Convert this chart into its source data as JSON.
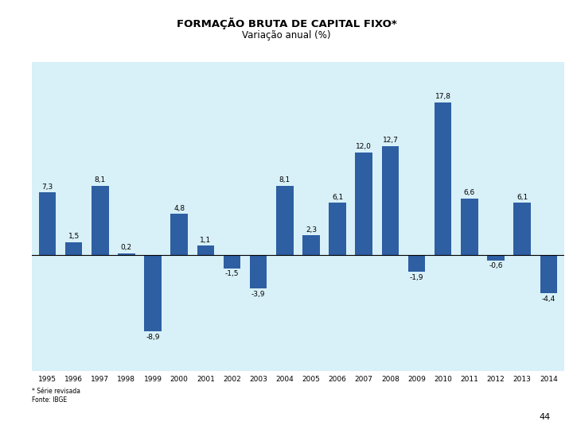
{
  "title": "FORMAÇÃO BRUTA DE CAPITAL FIXO*",
  "subtitle": "Variação anual (%)",
  "years": [
    1995,
    1996,
    1997,
    1998,
    1999,
    2000,
    2001,
    2002,
    2003,
    2004,
    2005,
    2006,
    2007,
    2008,
    2009,
    2010,
    2011,
    2012,
    2013,
    2014
  ],
  "values": [
    7.3,
    1.5,
    8.1,
    0.2,
    -8.9,
    4.8,
    1.1,
    -1.5,
    -3.9,
    8.1,
    2.3,
    6.1,
    12.0,
    12.7,
    -1.9,
    17.8,
    6.6,
    -0.6,
    6.1,
    -4.4
  ],
  "bar_color": "#2E5FA3",
  "bg_color": "#D8F0F8",
  "outer_bg": "#FFFFFF",
  "footnote1": "* Série revisada",
  "footnote2": "Fonte: IBGE",
  "page_number": "44",
  "title_fontsize": 9.5,
  "subtitle_fontsize": 8.5,
  "label_fontsize": 6.5,
  "tick_fontsize": 6.5,
  "footnote_fontsize": 5.5,
  "ylim_min": -13.5,
  "ylim_max": 22.5
}
